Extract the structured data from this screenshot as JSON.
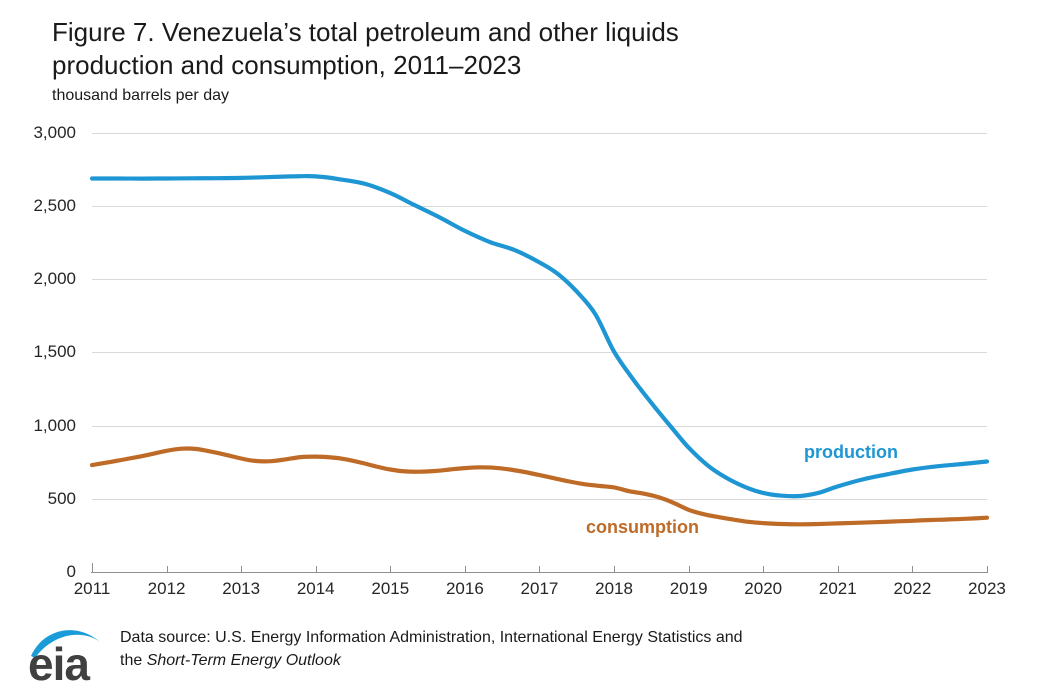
{
  "title": {
    "line1": "Figure 7. Venezuela’s total petroleum and other liquids",
    "line2": "production and consumption, 2011–2023",
    "unit": "thousand barrels per day"
  },
  "footer": {
    "source_line1": "Data source: U.S. Energy Information Administration, International Energy Statistics and",
    "source_line2_prefix": "the ",
    "source_line2_italic": "Short-Term Energy Outlook",
    "logo_text": "eia"
  },
  "colors": {
    "production": "#1f96d4",
    "consumption": "#bf6b28",
    "grid": "#d9d9d9",
    "axis": "#8f8f8f",
    "text": "#1a1a1a",
    "logo_blue": "#1a9cd8",
    "logo_text": "#404040"
  },
  "chart_data": {
    "type": "line",
    "title": "Figure 7. Venezuela’s total petroleum and other liquids production and consumption, 2011–2023",
    "ylabel": "thousand barrels per day",
    "xlabel": "",
    "ylim": [
      0,
      3000
    ],
    "xlim": [
      2011,
      2023
    ],
    "grid": "horizontal",
    "legend": "inline-labels",
    "y_ticks": [
      {
        "value": 3000,
        "label": "3,000"
      },
      {
        "value": 2500,
        "label": "2,500"
      },
      {
        "value": 2000,
        "label": "2,000"
      },
      {
        "value": 1500,
        "label": "1,500"
      },
      {
        "value": 1000,
        "label": "1,000"
      },
      {
        "value": 500,
        "label": "500"
      },
      {
        "value": 0,
        "label": "0"
      }
    ],
    "x_ticks": [
      {
        "value": 2011,
        "label": "2011"
      },
      {
        "value": 2012,
        "label": "2012"
      },
      {
        "value": 2013,
        "label": "2013"
      },
      {
        "value": 2014,
        "label": "2014"
      },
      {
        "value": 2015,
        "label": "2015"
      },
      {
        "value": 2016,
        "label": "2016"
      },
      {
        "value": 2017,
        "label": "2017"
      },
      {
        "value": 2018,
        "label": "2018"
      },
      {
        "value": 2019,
        "label": "2019"
      },
      {
        "value": 2020,
        "label": "2020"
      },
      {
        "value": 2021,
        "label": "2021"
      },
      {
        "value": 2022,
        "label": "2022"
      },
      {
        "value": 2023,
        "label": "2023"
      }
    ],
    "annual_values_estimated": {
      "production": {
        "2011": 2690,
        "2012": 2690,
        "2013": 2690,
        "2014": 2700,
        "2015": 2590,
        "2016": 2330,
        "2017": 2115,
        "2018": 1505,
        "2019": 850,
        "2020": 540,
        "2021": 585,
        "2022": 700,
        "2023": 755
      },
      "consumption": {
        "2011": 730,
        "2012": 828,
        "2013": 775,
        "2014": 788,
        "2015": 700,
        "2016": 710,
        "2017": 662,
        "2018": 578,
        "2019": 425,
        "2020": 334,
        "2021": 332,
        "2022": 350,
        "2023": 371
      }
    },
    "series": [
      {
        "name": "production",
        "color": "#1f96d4",
        "x": [
          2011,
          2011.33,
          2011.67,
          2012,
          2012.33,
          2012.67,
          2013,
          2013.33,
          2013.67,
          2013.9,
          2014.1,
          2014.33,
          2014.67,
          2015,
          2015.33,
          2015.67,
          2016,
          2016.33,
          2016.67,
          2017,
          2017.25,
          2017.5,
          2017.75,
          2018,
          2018.25,
          2018.5,
          2018.75,
          2019,
          2019.25,
          2019.5,
          2019.75,
          2020,
          2020.25,
          2020.5,
          2020.75,
          2021,
          2021.33,
          2021.67,
          2022,
          2022.33,
          2022.67,
          2023
        ],
        "values": [
          2688,
          2688,
          2687,
          2688,
          2689,
          2690,
          2692,
          2697,
          2702,
          2704,
          2698,
          2682,
          2650,
          2588,
          2505,
          2420,
          2330,
          2255,
          2198,
          2115,
          2035,
          1915,
          1760,
          1505,
          1320,
          1155,
          1000,
          850,
          730,
          645,
          582,
          540,
          521,
          519,
          542,
          585,
          632,
          668,
          700,
          722,
          738,
          755
        ]
      },
      {
        "name": "consumption",
        "color": "#bf6b28",
        "x": [
          2011,
          2011.25,
          2011.5,
          2011.75,
          2012,
          2012.2,
          2012.4,
          2012.6,
          2012.8,
          2013,
          2013.2,
          2013.4,
          2013.6,
          2013.8,
          2014,
          2014.2,
          2014.4,
          2014.6,
          2014.8,
          2015,
          2015.2,
          2015.4,
          2015.6,
          2015.8,
          2016,
          2016.2,
          2016.4,
          2016.6,
          2016.8,
          2017,
          2017.2,
          2017.4,
          2017.6,
          2017.8,
          2018,
          2018.2,
          2018.4,
          2018.6,
          2018.8,
          2019,
          2019.2,
          2019.4,
          2019.6,
          2019.8,
          2020,
          2020.25,
          2020.5,
          2020.75,
          2021,
          2021.25,
          2021.5,
          2021.75,
          2022,
          2022.25,
          2022.5,
          2022.75,
          2023
        ],
        "values": [
          730,
          752,
          775,
          800,
          828,
          842,
          840,
          822,
          800,
          775,
          758,
          757,
          770,
          785,
          788,
          783,
          770,
          748,
          722,
          700,
          687,
          685,
          690,
          700,
          710,
          715,
          712,
          700,
          683,
          662,
          640,
          618,
          600,
          588,
          578,
          552,
          535,
          510,
          472,
          425,
          395,
          375,
          358,
          343,
          334,
          328,
          326,
          328,
          332,
          336,
          340,
          345,
          350,
          355,
          359,
          364,
          371
        ]
      }
    ]
  }
}
